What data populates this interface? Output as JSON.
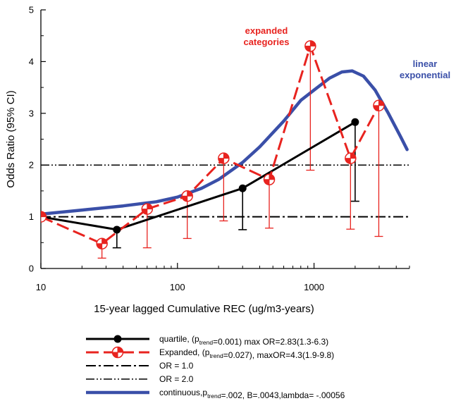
{
  "chart_data": {
    "type": "line",
    "title": "",
    "xlabel": "15-year lagged Cumulative REC (ug/m3-years)",
    "ylabel": "Odds Ratio (95% CI)",
    "x_scale": "log",
    "xlim": [
      10,
      5000
    ],
    "ylim": [
      0,
      5
    ],
    "x_ticks": [
      10,
      100,
      1000
    ],
    "x_tick_labels": [
      "10",
      "100",
      "1000"
    ],
    "y_ticks": [
      0,
      1,
      2,
      3,
      4,
      5
    ],
    "y_tick_labels": [
      "0",
      "1",
      "2",
      "3",
      "4",
      "5"
    ],
    "series": [
      {
        "id": "quartile",
        "color": "#000000",
        "style": "solid",
        "marker": "filled-circle",
        "points": [
          {
            "x": 10,
            "y": 1.0,
            "ci": [
              1.0,
              1.0
            ]
          },
          {
            "x": 36,
            "y": 0.75,
            "ci": [
              0.4,
              0.75
            ]
          },
          {
            "x": 300,
            "y": 1.55,
            "ci": [
              0.75,
              1.55
            ]
          },
          {
            "x": 2000,
            "y": 2.83,
            "ci": [
              1.3,
              2.83
            ]
          }
        ]
      },
      {
        "id": "expanded",
        "color": "#e8231f",
        "style": "dashed",
        "marker": "checker-circle",
        "points": [
          {
            "x": 10,
            "y": 1.0,
            "ci": [
              1.0,
              1.0
            ]
          },
          {
            "x": 28,
            "y": 0.48,
            "ci": [
              0.2,
              0.48
            ]
          },
          {
            "x": 60,
            "y": 1.15,
            "ci": [
              0.4,
              1.15
            ]
          },
          {
            "x": 118,
            "y": 1.4,
            "ci": [
              0.58,
              1.4
            ]
          },
          {
            "x": 218,
            "y": 2.13,
            "ci": [
              0.92,
              2.13
            ]
          },
          {
            "x": 470,
            "y": 1.72,
            "ci": [
              0.78,
              1.72
            ]
          },
          {
            "x": 940,
            "y": 4.3,
            "ci": [
              1.9,
              4.3
            ]
          },
          {
            "x": 1850,
            "y": 2.13,
            "ci": [
              0.76,
              2.13
            ]
          },
          {
            "x": 2980,
            "y": 3.15,
            "ci": [
              0.62,
              3.15
            ]
          }
        ]
      },
      {
        "id": "continuous",
        "color": "#3a4fa8",
        "style": "solid",
        "points": [
          {
            "x": 10,
            "y": 1.05
          },
          {
            "x": 20,
            "y": 1.13
          },
          {
            "x": 40,
            "y": 1.21
          },
          {
            "x": 70,
            "y": 1.29
          },
          {
            "x": 100,
            "y": 1.38
          },
          {
            "x": 150,
            "y": 1.55
          },
          {
            "x": 200,
            "y": 1.72
          },
          {
            "x": 300,
            "y": 2.05
          },
          {
            "x": 400,
            "y": 2.35
          },
          {
            "x": 600,
            "y": 2.85
          },
          {
            "x": 800,
            "y": 3.25
          },
          {
            "x": 1000,
            "y": 3.45
          },
          {
            "x": 1300,
            "y": 3.68
          },
          {
            "x": 1600,
            "y": 3.8
          },
          {
            "x": 1900,
            "y": 3.82
          },
          {
            "x": 2300,
            "y": 3.72
          },
          {
            "x": 2800,
            "y": 3.45
          },
          {
            "x": 3500,
            "y": 3.0
          },
          {
            "x": 4300,
            "y": 2.55
          },
          {
            "x": 4800,
            "y": 2.3
          }
        ]
      }
    ],
    "reference_lines": [
      {
        "id": "or1",
        "y": 1.0,
        "style": "dash-dot",
        "color": "#000000"
      },
      {
        "id": "or2",
        "y": 2.0,
        "style": "dash-dot-dot",
        "color": "#000000"
      }
    ],
    "annotations": [
      {
        "id": "expanded-annotation",
        "lines": [
          "expanded",
          "categories"
        ],
        "color": "#e8231f"
      },
      {
        "id": "linear-exp-annotation",
        "lines": [
          "linear",
          "exponential"
        ],
        "color": "#3a4fa8"
      }
    ],
    "legend": {
      "placement": "bottom",
      "entries": [
        {
          "series": "quartile",
          "parts": [
            {
              "t": "quartile, (p"
            },
            {
              "t": "trend",
              "sub": true
            },
            {
              "t": "=0.001) max OR=2.83(1.3-6.3)"
            }
          ]
        },
        {
          "series": "expanded",
          "parts": [
            {
              "t": "Expanded, (p"
            },
            {
              "t": "trend",
              "sub": true
            },
            {
              "t": "=0.027), maxOR=4.3(1.9-9.8)"
            }
          ]
        },
        {
          "series": "or1",
          "parts": [
            {
              "t": "OR = 1.0"
            }
          ]
        },
        {
          "series": "or2",
          "parts": [
            {
              "t": "OR = 2.0"
            }
          ]
        },
        {
          "series": "continuous",
          "parts": [
            {
              "t": "continuous,p"
            },
            {
              "t": "trend",
              "sub": true
            },
            {
              "t": "=.002, B=.0043,lambda= -.00056"
            }
          ]
        }
      ]
    }
  }
}
